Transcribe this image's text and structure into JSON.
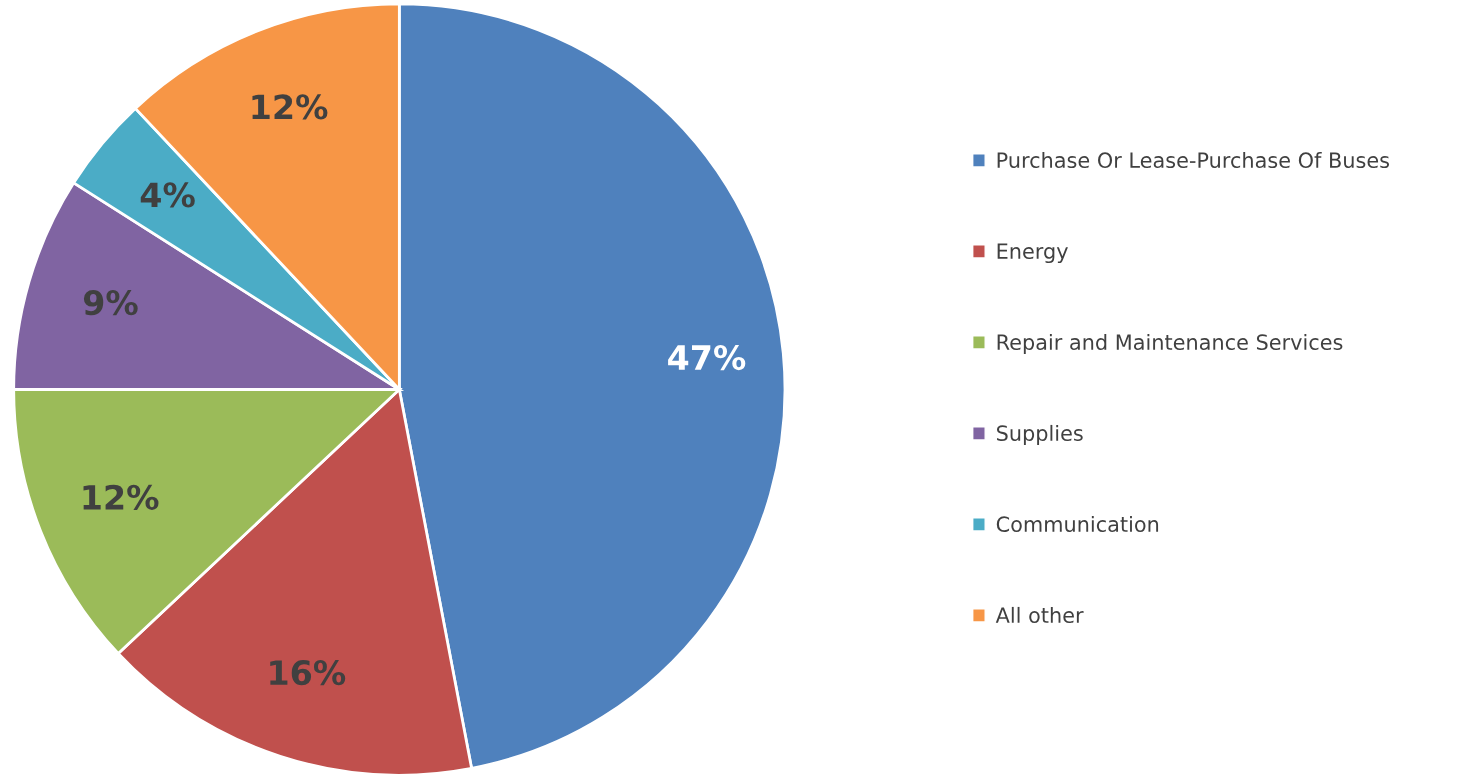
{
  "chart_data": {
    "type": "pie",
    "categories": [
      "Purchase Or Lease-Purchase Of Buses",
      "Energy",
      "Repair and Maintenance Services",
      "Supplies",
      "Communication",
      "All other"
    ],
    "values": [
      47,
      16,
      12,
      9,
      4,
      12
    ],
    "colors": [
      "#4f81bd",
      "#c0504d",
      "#9bbb59",
      "#8064a2",
      "#4bacc6",
      "#f79646"
    ],
    "value_labels": [
      "47%",
      "16%",
      "12%",
      "9%",
      "4%",
      "12%"
    ],
    "legend": "right"
  }
}
